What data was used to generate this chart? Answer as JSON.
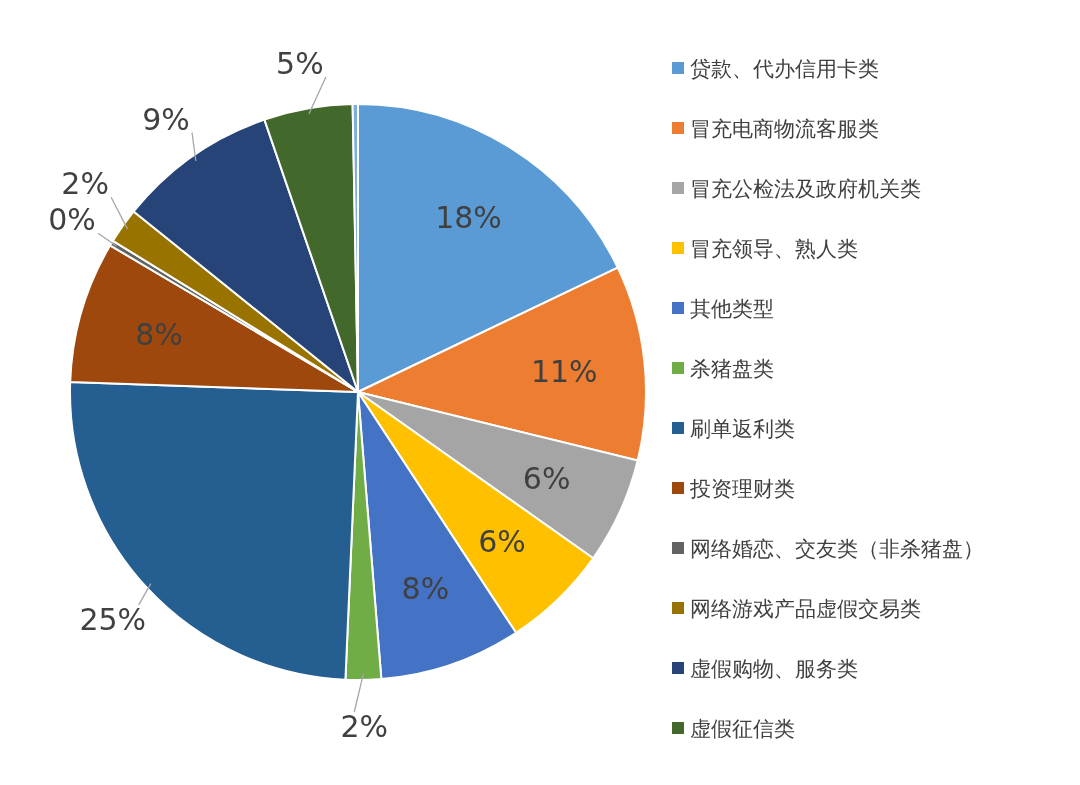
{
  "chart_data": {
    "type": "pie",
    "legend": "right",
    "data_labels": true,
    "categories": [
      "贷款、代办信用卡类",
      "冒充电商物流客服类",
      "冒充公检法及政府机关类",
      "冒充领导、熟人类",
      "其他类型",
      "杀猪盘类",
      "刷单返利类",
      "投资理财类",
      "网络婚恋、交友类（非杀猪盘）",
      "网络游戏产品虚假交易类",
      "虚假购物、服务类",
      "虚假征信类",
      null
    ],
    "values": [
      18,
      11,
      6,
      6,
      8,
      2,
      25,
      8,
      0.3,
      2,
      9,
      5,
      0.3
    ],
    "value_labels": [
      "18%",
      "11%",
      "6%",
      "6%",
      "8%",
      "2%",
      "25%",
      "8%",
      "0%",
      "2%",
      "9%",
      "5%",
      null
    ],
    "colors": [
      "#5b9bd5",
      "#ed7d31",
      "#a5a5a5",
      "#ffc000",
      "#4472c4",
      "#70ad47",
      "#255e91",
      "#9e480e",
      "#636363",
      "#997300",
      "#264478",
      "#43682b",
      "#7cafdd"
    ]
  }
}
